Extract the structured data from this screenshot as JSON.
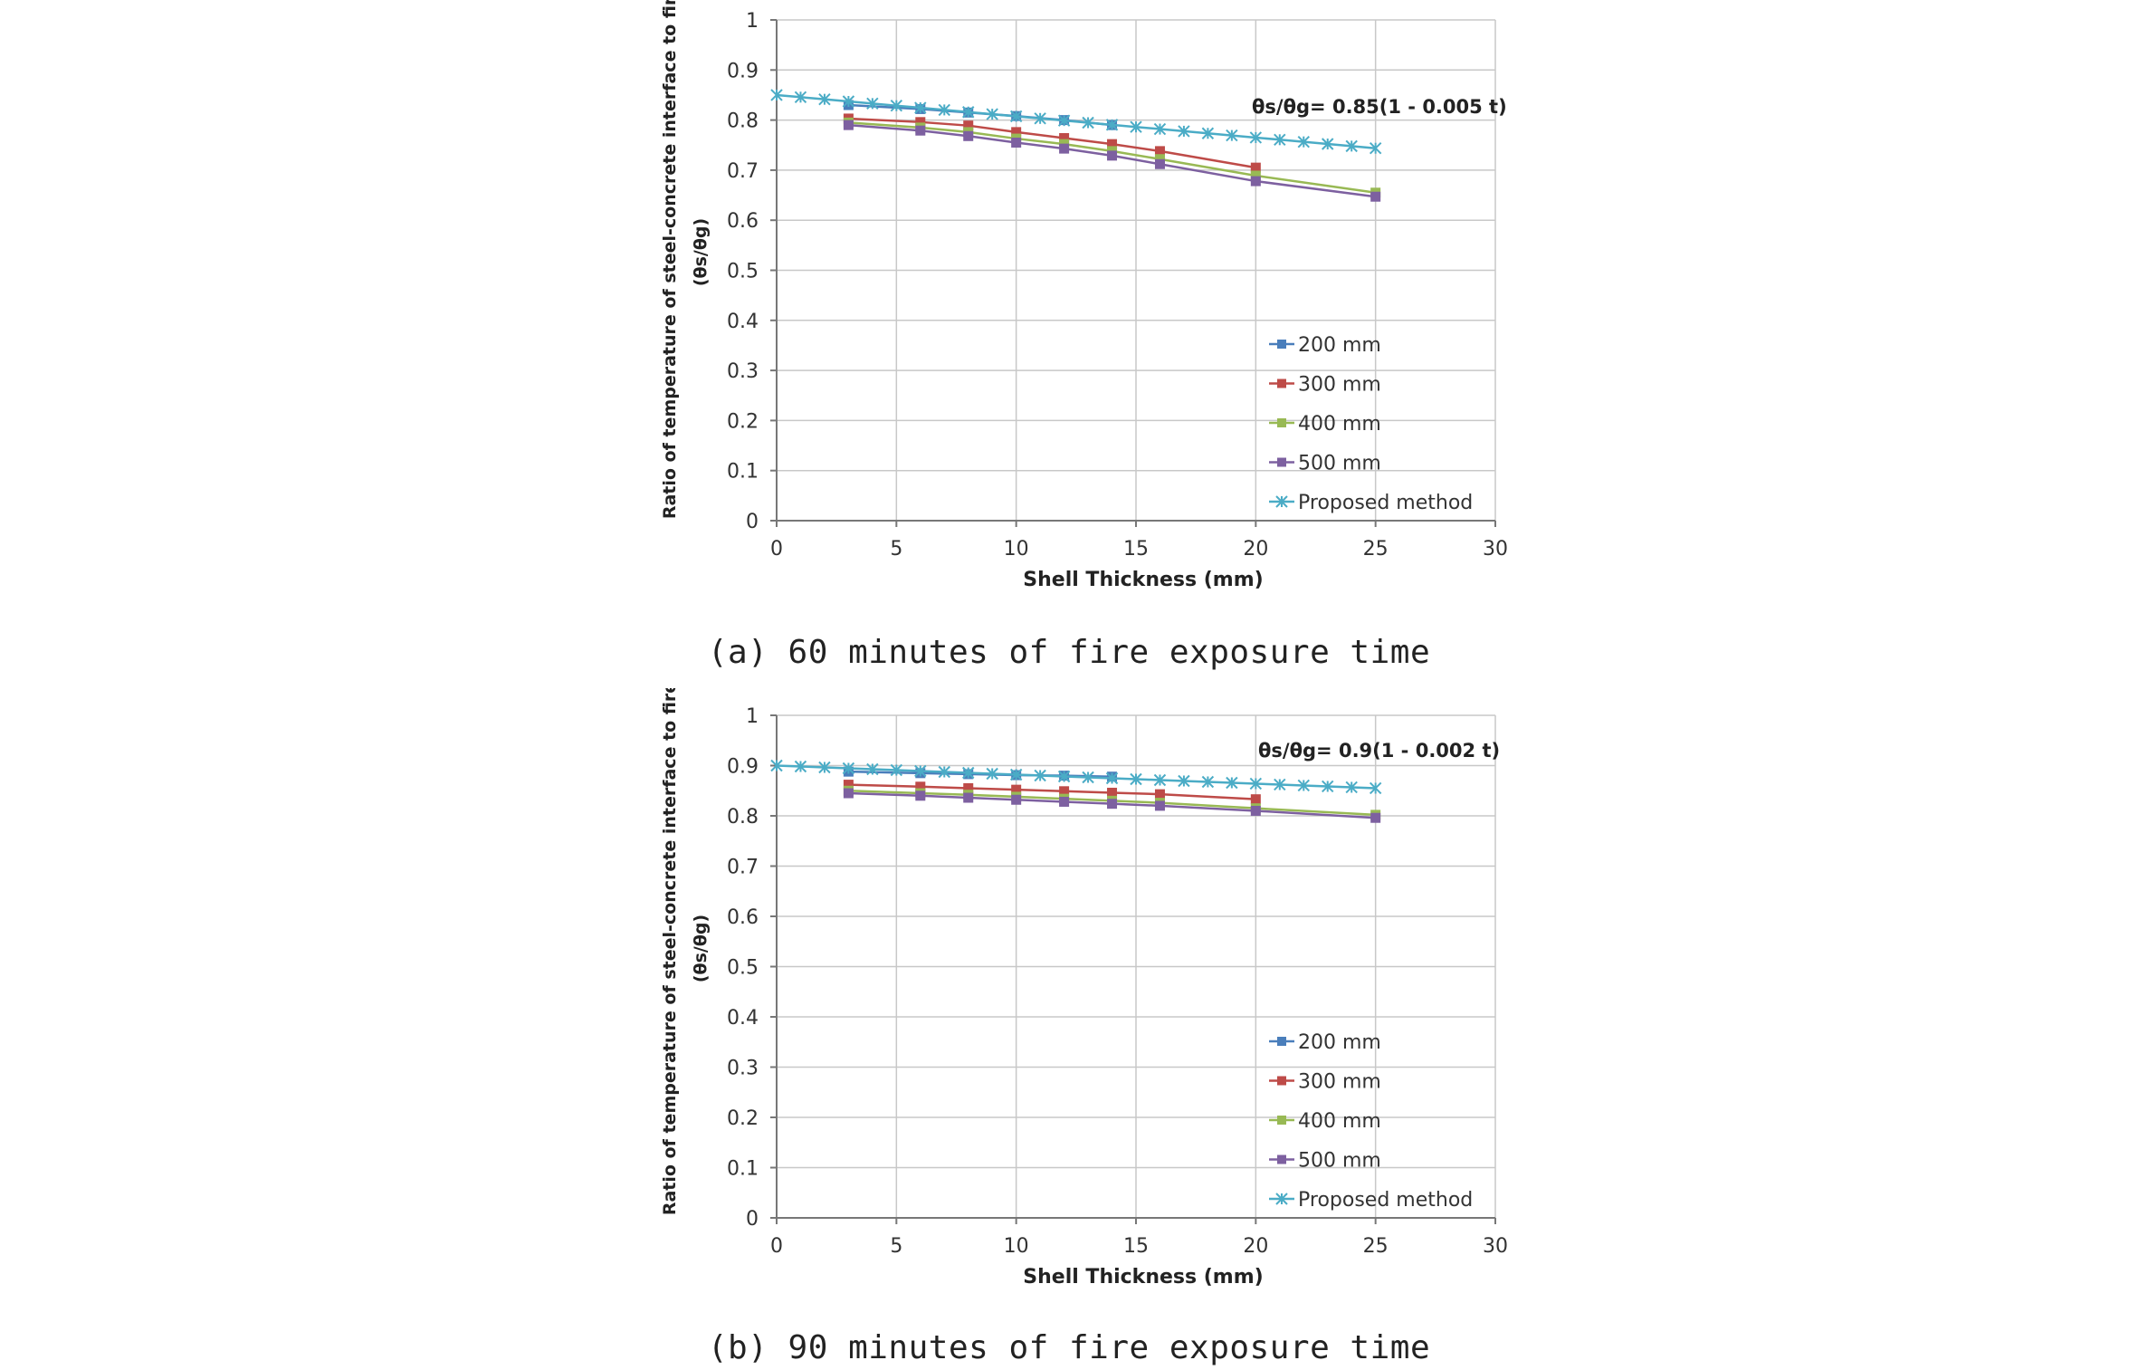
{
  "chart_data": [
    {
      "type": "line",
      "caption": "(a) 60 minutes of fire exposure time",
      "xlabel": "Shell Thickness (mm)",
      "ylabel_line1": "Ratio of temperature of steel-concrete interface to fire",
      "ylabel_line2": "(θs/θg)",
      "xlim": [
        0,
        30
      ],
      "ylim": [
        0,
        1
      ],
      "xticks": [
        "0",
        "5",
        "10",
        "15",
        "20",
        "25",
        "30"
      ],
      "yticks": [
        "0",
        "0.1",
        "0.2",
        "0.3",
        "0.4",
        "0.5",
        "0.6",
        "0.7",
        "0.8",
        "0.9",
        "1"
      ],
      "grid": true,
      "legend_position": "lower-right",
      "annotation": "θs/θg= 0.85(1 - 0.005 t)",
      "series": [
        {
          "name": "200 mm",
          "color": "#4a7ebb",
          "marker": "square",
          "x": [
            3,
            6,
            8,
            10,
            12,
            14
          ],
          "y": [
            0.83,
            0.822,
            0.815,
            0.808,
            0.8,
            0.79
          ]
        },
        {
          "name": "300 mm",
          "color": "#be4b48",
          "marker": "square",
          "x": [
            3,
            6,
            8,
            10,
            12,
            14,
            16,
            20
          ],
          "y": [
            0.803,
            0.796,
            0.789,
            0.776,
            0.764,
            0.752,
            0.738,
            0.705
          ]
        },
        {
          "name": "400 mm",
          "color": "#98b954",
          "marker": "square",
          "x": [
            3,
            6,
            8,
            10,
            12,
            14,
            16,
            20,
            25
          ],
          "y": [
            0.795,
            0.785,
            0.776,
            0.763,
            0.752,
            0.738,
            0.722,
            0.689,
            0.655
          ]
        },
        {
          "name": "500 mm",
          "color": "#7d60a0",
          "marker": "square",
          "x": [
            3,
            6,
            8,
            10,
            12,
            14,
            16,
            20,
            25
          ],
          "y": [
            0.79,
            0.779,
            0.768,
            0.755,
            0.743,
            0.729,
            0.712,
            0.678,
            0.647
          ]
        },
        {
          "name": "Proposed method",
          "color": "#4bacc6",
          "marker": "star",
          "x": [
            0,
            1,
            2,
            3,
            4,
            5,
            6,
            7,
            8,
            9,
            10,
            11,
            12,
            13,
            14,
            15,
            16,
            17,
            18,
            19,
            20,
            21,
            22,
            23,
            24,
            25
          ],
          "y": [
            0.85,
            0.84575,
            0.8415,
            0.83725,
            0.833,
            0.82875,
            0.8245,
            0.82025,
            0.816,
            0.81175,
            0.8075,
            0.80325,
            0.799,
            0.79475,
            0.7905,
            0.78625,
            0.782,
            0.77775,
            0.7735,
            0.76925,
            0.765,
            0.76075,
            0.7565,
            0.75225,
            0.748,
            0.74375
          ]
        }
      ]
    },
    {
      "type": "line",
      "caption": "(b) 90 minutes of fire exposure time",
      "xlabel": "Shell Thickness (mm)",
      "ylabel_line1": "Ratio of temperature of steel-concrete interface to fire",
      "ylabel_line2": "(θs/θg)",
      "xlim": [
        0,
        30
      ],
      "ylim": [
        0,
        1
      ],
      "xticks": [
        "0",
        "5",
        "10",
        "15",
        "20",
        "25",
        "30"
      ],
      "yticks": [
        "0",
        "0.1",
        "0.2",
        "0.3",
        "0.4",
        "0.5",
        "0.6",
        "0.7",
        "0.8",
        "0.9",
        "1"
      ],
      "grid": true,
      "legend_position": "lower-right",
      "annotation": "θs/θg= 0.9(1 - 0.002 t)",
      "series": [
        {
          "name": "200 mm",
          "color": "#4a7ebb",
          "marker": "square",
          "x": [
            3,
            6,
            8,
            10,
            12,
            14
          ],
          "y": [
            0.888,
            0.885,
            0.883,
            0.881,
            0.88,
            0.878
          ]
        },
        {
          "name": "300 mm",
          "color": "#be4b48",
          "marker": "square",
          "x": [
            3,
            6,
            8,
            10,
            12,
            14,
            16,
            20
          ],
          "y": [
            0.862,
            0.858,
            0.855,
            0.852,
            0.849,
            0.846,
            0.843,
            0.833
          ]
        },
        {
          "name": "400 mm",
          "color": "#98b954",
          "marker": "square",
          "x": [
            3,
            6,
            8,
            10,
            12,
            14,
            16,
            20,
            25
          ],
          "y": [
            0.85,
            0.845,
            0.842,
            0.838,
            0.834,
            0.83,
            0.826,
            0.815,
            0.802
          ]
        },
        {
          "name": "500 mm",
          "color": "#7d60a0",
          "marker": "square",
          "x": [
            3,
            6,
            8,
            10,
            12,
            14,
            16,
            20,
            25
          ],
          "y": [
            0.845,
            0.84,
            0.836,
            0.832,
            0.828,
            0.824,
            0.82,
            0.81,
            0.796
          ]
        },
        {
          "name": "Proposed method",
          "color": "#4bacc6",
          "marker": "star",
          "x": [
            0,
            1,
            2,
            3,
            4,
            5,
            6,
            7,
            8,
            9,
            10,
            11,
            12,
            13,
            14,
            15,
            16,
            17,
            18,
            19,
            20,
            21,
            22,
            23,
            24,
            25
          ],
          "y": [
            0.9,
            0.8982,
            0.8964,
            0.8946,
            0.8928,
            0.891,
            0.8892,
            0.8874,
            0.8856,
            0.8838,
            0.882,
            0.8802,
            0.8784,
            0.8766,
            0.8748,
            0.873,
            0.8712,
            0.8694,
            0.8676,
            0.8658,
            0.864,
            0.8622,
            0.8604,
            0.8586,
            0.8568,
            0.855
          ]
        }
      ]
    }
  ]
}
